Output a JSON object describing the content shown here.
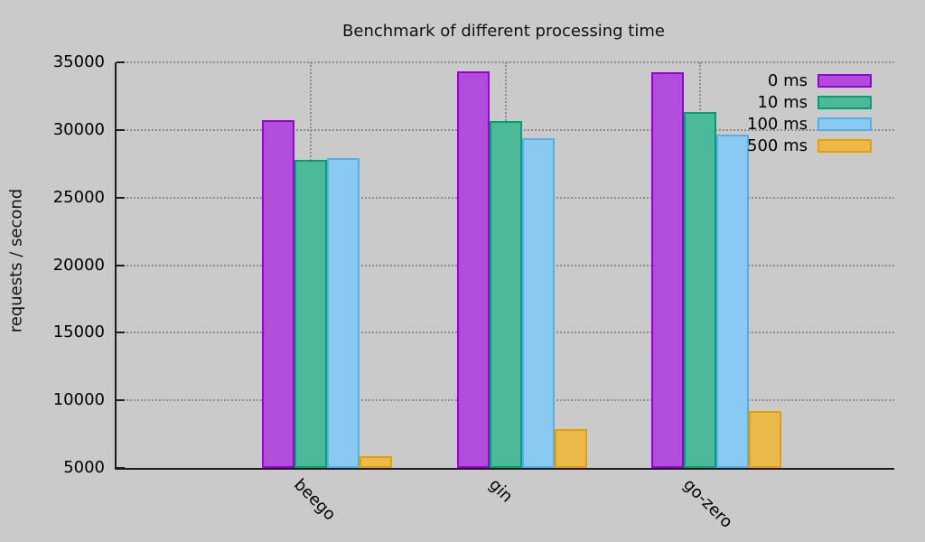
{
  "title": "Benchmark of different processing time",
  "y_axis_title": "requests / second",
  "chart_data": {
    "type": "bar",
    "title": "Benchmark of different processing time",
    "xlabel": "",
    "ylabel": "requests / second",
    "categories": [
      "beego",
      "gin",
      "go-zero"
    ],
    "series": [
      {
        "name": "0 ms",
        "values": [
          30700,
          34300,
          34250
        ],
        "border": "#9400d3",
        "fill": "#b14cdd"
      },
      {
        "name": "10 ms",
        "values": [
          27800,
          30650,
          31300
        ],
        "border": "#009e73",
        "fill": "#4cb999"
      },
      {
        "name": "100 ms",
        "values": [
          27900,
          29400,
          29650
        ],
        "border": "#55aee6",
        "fill": "#8acaf2"
      },
      {
        "name": "500 ms",
        "values": [
          5850,
          7900,
          9200
        ],
        "border": "#e69f00",
        "fill": "#ecba4b"
      }
    ],
    "ylim": [
      5000,
      35000
    ],
    "yticks": [
      5000,
      10000,
      15000,
      20000,
      25000,
      30000,
      35000
    ],
    "grid": true,
    "legend_position": "top-right"
  },
  "colors": {
    "background": "#cacaca",
    "grid": "#8c8c8c",
    "axis": "#1c1c1c",
    "text": "#000000"
  }
}
